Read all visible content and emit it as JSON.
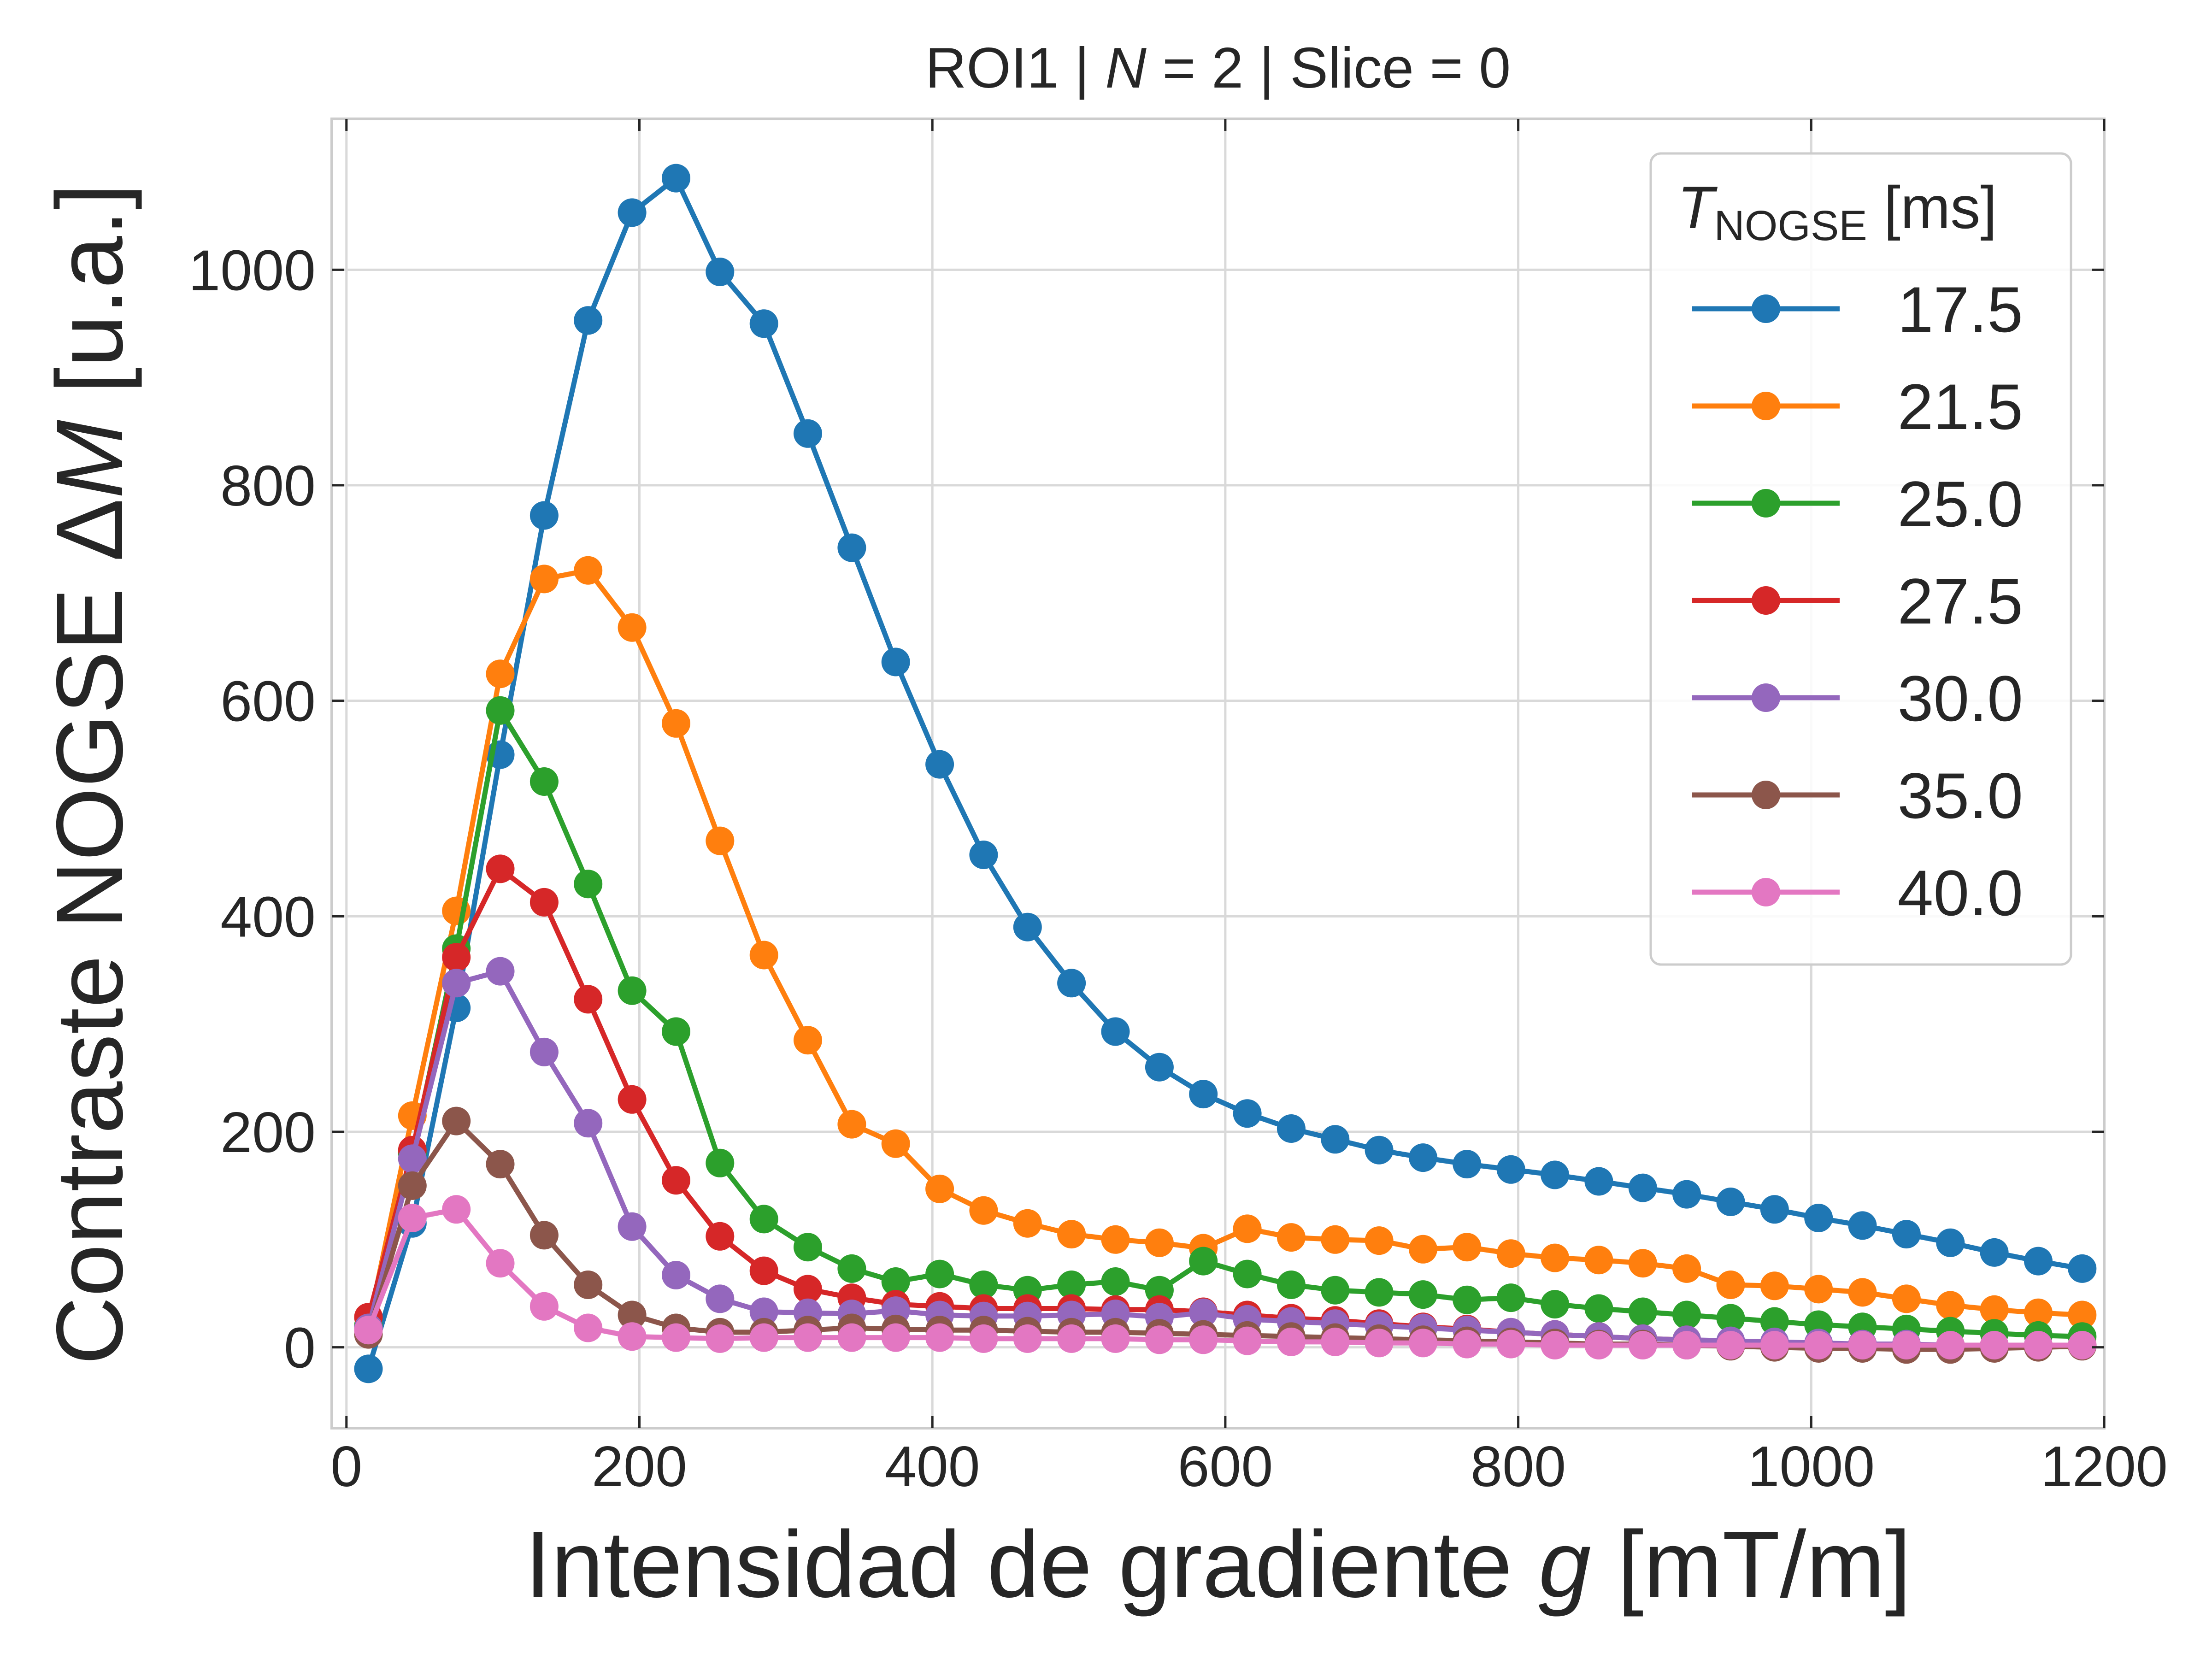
{
  "chart_data": {
    "type": "line",
    "title_parts": [
      "ROI1 | ",
      "N",
      " = 2 | Slice = 0"
    ],
    "xlabel_parts": [
      "Intensidad de gradiente ",
      "g",
      " [mT/m]"
    ],
    "ylabel_parts": [
      "Contraste NOGSE Δ",
      "M",
      " [u.a.]"
    ],
    "legend_title": {
      "symbol": "T",
      "subscript": "NOGSE",
      "unit": " [ms]"
    },
    "xlim": [
      -10,
      1200
    ],
    "ylim": [
      -75,
      1140
    ],
    "xticks": [
      0,
      200,
      400,
      600,
      800,
      1000,
      1200
    ],
    "yticks": [
      0,
      200,
      400,
      600,
      800,
      1000
    ],
    "xtick_labels": [
      "0",
      "200",
      "400",
      "600",
      "800",
      "1000",
      "1200"
    ],
    "ytick_labels": [
      "0",
      "200",
      "400",
      "600",
      "800",
      "1000"
    ],
    "grid": true,
    "legend_position": "top-right",
    "x": [
      15,
      45,
      75,
      105,
      135,
      165,
      195,
      225,
      255,
      285,
      315,
      345,
      375,
      405,
      435,
      465,
      495,
      525,
      555,
      585,
      615,
      645,
      675,
      705,
      735,
      765,
      795,
      825,
      855,
      885,
      915,
      945,
      975,
      1005,
      1035,
      1065,
      1095,
      1125,
      1155,
      1185
    ],
    "series": [
      {
        "name": "17.5",
        "color": "#1f77b4",
        "values": [
          -20,
          115,
          315,
          550,
          772,
          953,
          1053,
          1085,
          998,
          950,
          848,
          742,
          636,
          541,
          457,
          390,
          338,
          293,
          260,
          235,
          217,
          203,
          193,
          183,
          176,
          170,
          165,
          160,
          154,
          148,
          142,
          135,
          128,
          120,
          113,
          105,
          97,
          88,
          80,
          73
        ]
      },
      {
        "name": "21.5",
        "color": "#ff7f0e",
        "values": [
          20,
          215,
          405,
          625,
          713,
          721,
          668,
          579,
          470,
          364,
          285,
          207,
          189,
          147,
          127,
          115,
          105,
          100,
          97,
          92,
          110,
          102,
          100,
          99,
          91,
          93,
          87,
          83,
          81,
          78,
          73,
          58,
          57,
          54,
          51,
          45,
          39,
          35,
          32,
          30
        ]
      },
      {
        "name": "25.0",
        "color": "#2ca02c",
        "values": [
          20,
          180,
          370,
          591,
          525,
          430,
          331,
          293,
          171,
          119,
          93,
          73,
          61,
          68,
          58,
          53,
          58,
          61,
          53,
          80,
          68,
          58,
          53,
          51,
          49,
          44,
          46,
          40,
          36,
          33,
          30,
          27,
          24,
          21,
          19,
          17,
          15,
          13,
          11,
          10
        ]
      },
      {
        "name": "27.5",
        "color": "#d62728",
        "values": [
          28,
          183,
          362,
          444,
          413,
          323,
          230,
          155,
          103,
          71,
          54,
          46,
          40,
          38,
          36,
          36,
          36,
          35,
          35,
          33,
          30,
          27,
          25,
          22,
          19,
          17,
          14,
          12,
          10,
          8,
          7,
          5,
          4,
          3,
          3,
          2,
          2,
          2,
          2,
          2
        ]
      },
      {
        "name": "30.0",
        "color": "#9467bd",
        "values": [
          18,
          175,
          338,
          349,
          274,
          208,
          112,
          67,
          45,
          33,
          32,
          31,
          34,
          30,
          29,
          29,
          30,
          31,
          28,
          32,
          26,
          24,
          22,
          20,
          18,
          16,
          14,
          12,
          10,
          8,
          7,
          6,
          5,
          4,
          3,
          3,
          2,
          2,
          2,
          2
        ]
      },
      {
        "name": "35.0",
        "color": "#8c564b",
        "values": [
          12,
          150,
          210,
          170,
          104,
          58,
          30,
          18,
          14,
          14,
          16,
          18,
          17,
          16,
          16,
          15,
          14,
          14,
          13,
          12,
          11,
          10,
          9,
          8,
          7,
          6,
          5,
          4,
          3,
          3,
          2,
          1,
          0,
          -1,
          -1,
          -2,
          -2,
          -1,
          0,
          1
        ]
      },
      {
        "name": "40.0",
        "color": "#e377c2",
        "values": [
          16,
          120,
          128,
          78,
          38,
          18,
          10,
          9,
          8,
          9,
          9,
          9,
          9,
          9,
          8,
          8,
          8,
          8,
          7,
          7,
          6,
          5,
          5,
          4,
          4,
          3,
          3,
          2,
          2,
          2,
          2,
          2,
          2,
          2,
          2,
          2,
          2,
          2,
          2,
          2
        ]
      }
    ]
  }
}
